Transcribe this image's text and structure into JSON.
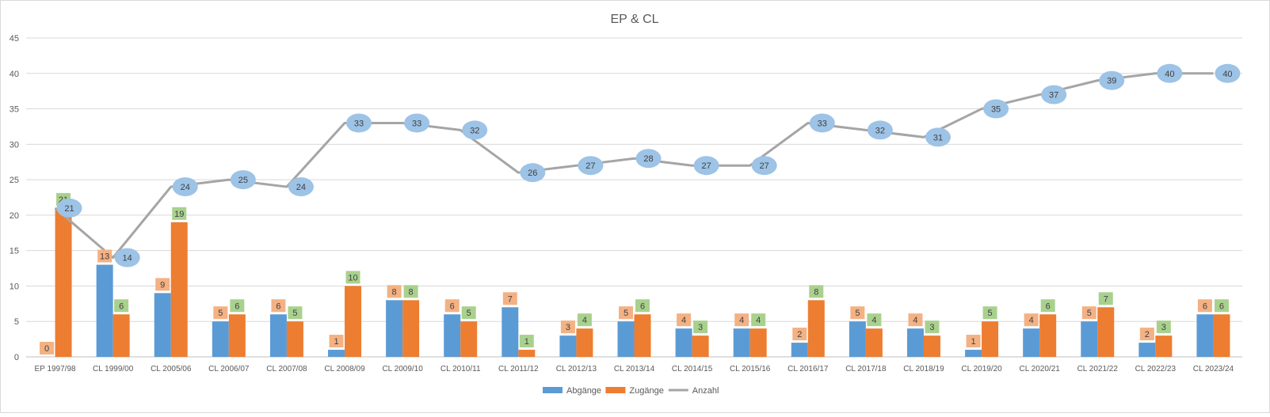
{
  "chart_data": {
    "type": "bar",
    "title": "EP & CL",
    "xlabel": "",
    "ylabel": "",
    "ylim": [
      0,
      45
    ],
    "yticks": [
      0,
      5,
      10,
      15,
      20,
      25,
      30,
      35,
      40,
      45
    ],
    "grid": true,
    "legend_position": "bottom",
    "categories": [
      "EP 1997/98",
      "CL 1999/00",
      "CL 2005/06",
      "CL 2006/07",
      "CL 2007/08",
      "CL 2008/09",
      "CL 2009/10",
      "CL 2010/11",
      "CL 2011/12",
      "CL 2012/13",
      "CL 2013/14",
      "CL 2014/15",
      "CL 2015/16",
      "CL 2016/17",
      "CL 2017/18",
      "CL 2018/19",
      "CL 2019/20",
      "CL 2020/21",
      "CL 2021/22",
      "CL 2022/23",
      "CL 2023/24"
    ],
    "series": [
      {
        "name": "Abgänge",
        "kind": "bar",
        "color": "#5b9bd5",
        "label_bg": "#f4b183",
        "values": [
          0,
          13,
          9,
          5,
          6,
          1,
          8,
          6,
          7,
          3,
          5,
          4,
          4,
          2,
          5,
          4,
          1,
          4,
          5,
          2,
          6
        ]
      },
      {
        "name": "Zugänge",
        "kind": "bar",
        "color": "#ed7d31",
        "label_bg": "#a9d18e",
        "values": [
          21,
          6,
          19,
          6,
          5,
          10,
          8,
          5,
          1,
          4,
          6,
          3,
          4,
          8,
          4,
          3,
          5,
          6,
          7,
          3,
          6
        ]
      },
      {
        "name": "Anzahl",
        "kind": "line",
        "color": "#a5a5a5",
        "label_bg": "#9dc3e6",
        "values": [
          21,
          14,
          24,
          25,
          24,
          33,
          33,
          32,
          26,
          27,
          28,
          27,
          27,
          33,
          32,
          31,
          35,
          37,
          39,
          40,
          40
        ]
      }
    ]
  }
}
